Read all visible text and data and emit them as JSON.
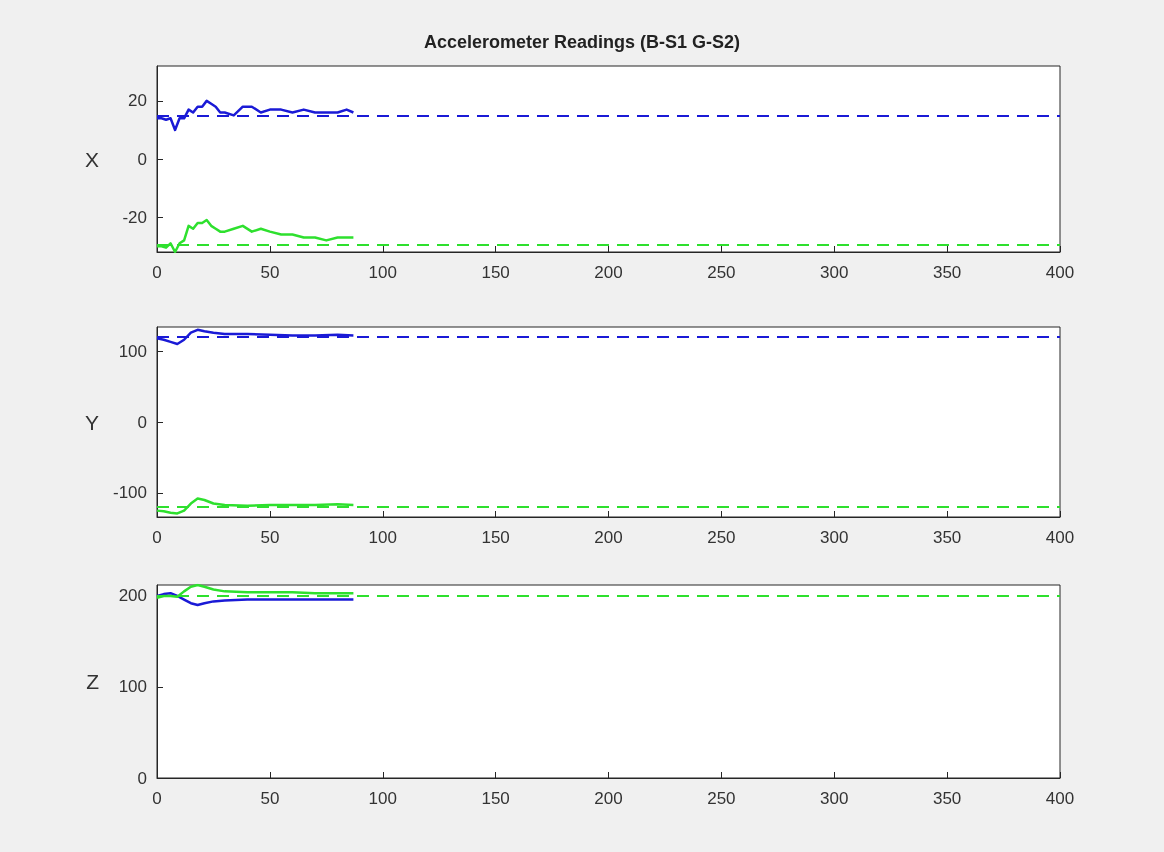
{
  "chart_data": [
    {
      "type": "line",
      "title": "Accelerometer Readings (B-S1 G-S2)",
      "ylabel": "X",
      "x": [
        0,
        2,
        4,
        6,
        8,
        10,
        12,
        14,
        16,
        18,
        20,
        22,
        24,
        26,
        28,
        30,
        34,
        38,
        42,
        46,
        50,
        55,
        60,
        65,
        70,
        75,
        80,
        84,
        87
      ],
      "xlim": [
        0,
        400
      ],
      "xticks": [
        0,
        50,
        100,
        150,
        200,
        250,
        300,
        350,
        400
      ],
      "ylim": [
        -32,
        32
      ],
      "yticks": [
        -20,
        0,
        20
      ],
      "series": [
        {
          "color": "#1a1ad6",
          "values": [
            14,
            14,
            13.5,
            14,
            10,
            14,
            14,
            17,
            16,
            18,
            18,
            20,
            19,
            18,
            16,
            16,
            15,
            18,
            18,
            16,
            17,
            17,
            16,
            17,
            16,
            16,
            16,
            17,
            16
          ]
        },
        {
          "color": "#2ee02e",
          "values": [
            -30,
            -30,
            -30.5,
            -29,
            -32,
            -29,
            -28,
            -23,
            -24,
            -22,
            -22,
            -21,
            -23,
            -24,
            -25,
            -25,
            -24,
            -23,
            -25,
            -24,
            -25,
            -26,
            -26,
            -27,
            -27,
            -28,
            -27,
            -27,
            -27
          ]
        }
      ],
      "ref_lines": [
        {
          "axis": "y",
          "value": 15,
          "color": "#1a1ad6",
          "line_style": "dashed"
        },
        {
          "axis": "y",
          "value": -29.5,
          "color": "#2ee02e",
          "line_style": "dashed"
        }
      ]
    },
    {
      "type": "line",
      "ylabel": "Y",
      "x": [
        0,
        3,
        6,
        9,
        12,
        15,
        18,
        21,
        25,
        30,
        40,
        50,
        60,
        70,
        80,
        87
      ],
      "xlim": [
        0,
        400
      ],
      "xticks": [
        0,
        50,
        100,
        150,
        200,
        250,
        300,
        350,
        400
      ],
      "ylim": [
        -134,
        134
      ],
      "yticks": [
        -100,
        0,
        100
      ],
      "series": [
        {
          "color": "#1a1ad6",
          "values": [
            118,
            116,
            113,
            110,
            116,
            126,
            130,
            128,
            126,
            124,
            124,
            123,
            122,
            122,
            123,
            122
          ]
        },
        {
          "color": "#2ee02e",
          "values": [
            -125,
            -126,
            -128,
            -129,
            -125,
            -115,
            -108,
            -110,
            -115,
            -117,
            -118,
            -117,
            -117,
            -117,
            -116,
            -117
          ]
        }
      ],
      "ref_lines": [
        {
          "axis": "y",
          "value": 120,
          "color": "#1a1ad6",
          "line_style": "dashed"
        },
        {
          "axis": "y",
          "value": -120,
          "color": "#2ee02e",
          "line_style": "dashed"
        }
      ]
    },
    {
      "type": "line",
      "ylabel": "Z",
      "x": [
        0,
        3,
        6,
        9,
        12,
        15,
        18,
        21,
        25,
        30,
        40,
        50,
        60,
        70,
        80,
        87
      ],
      "xlim": [
        0,
        400
      ],
      "xticks": [
        0,
        50,
        100,
        150,
        200,
        250,
        300,
        350,
        400
      ],
      "ylim": [
        0,
        212
      ],
      "yticks": [
        0,
        100,
        200
      ],
      "series": [
        {
          "color": "#1a1ad6",
          "values": [
            200,
            202,
            203,
            200,
            196,
            192,
            190,
            192,
            194,
            195,
            196,
            196,
            196,
            196,
            196,
            196
          ]
        },
        {
          "color": "#2ee02e",
          "values": [
            198,
            200,
            200,
            199,
            205,
            210,
            212,
            210,
            207,
            205,
            204,
            204,
            204,
            203,
            203,
            203
          ]
        }
      ],
      "ref_lines": [
        {
          "axis": "y",
          "value": 200,
          "color": "#2ee02e",
          "line_style": "dashed"
        }
      ]
    }
  ]
}
